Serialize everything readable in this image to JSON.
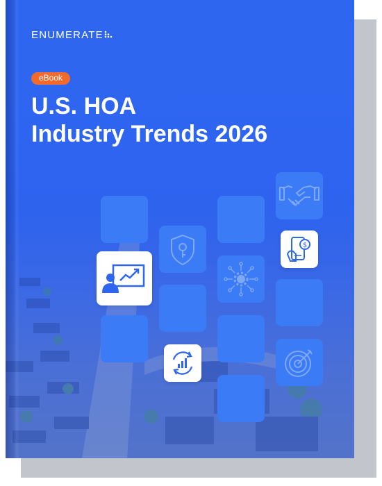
{
  "cover": {
    "logo_text": "ENUMERATE",
    "badge": "eBook",
    "title_line1": "U.S. HOA",
    "title_line2": "Industry Trends 2026"
  },
  "colors": {
    "cover_blue": "#2f66f0",
    "tile_blue": "#3b7bf5",
    "badge_orange": "#f26b2d",
    "icon_blue": "#2f66f0",
    "shadow_gray": "#c3c5cc"
  },
  "icons": [
    "handshake-icon",
    "shield-key-icon",
    "mobile-payment-icon",
    "presentation-growth-icon",
    "network-gear-icon",
    "refresh-chart-icon",
    "target-icon"
  ]
}
